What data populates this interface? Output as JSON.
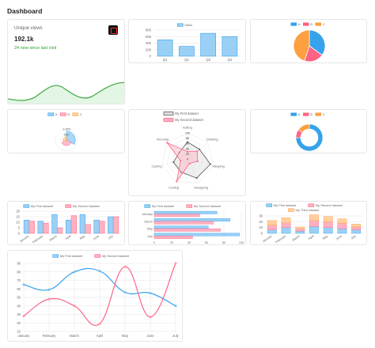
{
  "page": {
    "title": "Dashboard"
  },
  "unique_views": {
    "label": "Unique views",
    "value": "192.1k",
    "subtext": "24 new since last visit",
    "icon": "youtube-icon"
  },
  "colors": {
    "blue": "#36a2eb",
    "blue_fill": "#9ad0f5",
    "red": "#ff6384",
    "red_fill": "#ffb1c1",
    "orange": "#ff9f40",
    "orange_fill": "#ffcf9f",
    "green": "#4caf50",
    "grid": "#e5e5e5",
    "text": "#666666"
  },
  "chart_data": [
    {
      "id": "sales-bar",
      "type": "bar",
      "legend": [
        "Sales"
      ],
      "categories": [
        "Q1",
        "Q2",
        "Q3",
        "Q4"
      ],
      "values": [
        500,
        300,
        700,
        600
      ],
      "ylim": [
        0,
        800
      ],
      "yticks": [
        "800",
        "600",
        "400",
        "200",
        "0"
      ]
    },
    {
      "id": "abc-pie",
      "type": "pie",
      "legend": [
        "A",
        "B",
        "C"
      ],
      "values": [
        35,
        20,
        45
      ]
    },
    {
      "id": "abc-polar",
      "type": "polarArea",
      "legend": [
        "A",
        "B",
        "C"
      ],
      "values": [
        800,
        500,
        300
      ],
      "rlim": [
        0,
        1000
      ],
      "rticks": [
        "1,000",
        "500"
      ]
    },
    {
      "id": "skills-radar",
      "type": "radar",
      "legend": [
        "My First dataset",
        "My Second dataset"
      ],
      "axes": [
        "Eating",
        "Drinking",
        "Sleeping",
        "Designing",
        "Coding",
        "Cycling",
        "Running"
      ],
      "series": [
        {
          "name": "My First dataset",
          "values": [
            65,
            59,
            90,
            81,
            56,
            55,
            40
          ]
        },
        {
          "name": "My Second dataset",
          "values": [
            28,
            48,
            40,
            19,
            96,
            27,
            100
          ]
        }
      ],
      "rlim": [
        0,
        100
      ],
      "rticks": [
        "100",
        "80",
        "60",
        "40",
        "20",
        "0"
      ]
    },
    {
      "id": "abc-doughnut",
      "type": "doughnut",
      "legend": [
        "A",
        "B",
        "C"
      ],
      "values": [
        75,
        10,
        15
      ]
    },
    {
      "id": "grouped-bar",
      "type": "bar",
      "legend": [
        "My First dataset",
        "My Second dataset"
      ],
      "categories": [
        "January",
        "February",
        "March",
        "April",
        "May",
        "June",
        "July"
      ],
      "series": [
        {
          "name": "My First dataset",
          "values": [
            12,
            11,
            17,
            12,
            17,
            12,
            15
          ]
        },
        {
          "name": "My Second dataset",
          "values": [
            11,
            9,
            5,
            16,
            8,
            11,
            15
          ]
        }
      ],
      "ylim": [
        0,
        20
      ],
      "yticks": [
        "20",
        "15",
        "10",
        "5",
        "0"
      ]
    },
    {
      "id": "horizontal-bar",
      "type": "bar",
      "orientation": "horizontal",
      "legend": [
        "My First dataset",
        "My Second dataset"
      ],
      "categories": [
        "January",
        "March",
        "May",
        "July"
      ],
      "series": [
        {
          "name": "My First dataset",
          "values": [
            72,
            87,
            62,
            98
          ]
        },
        {
          "name": "My Second dataset",
          "values": [
            52,
            68,
            76,
            44
          ]
        }
      ],
      "xlim": [
        0,
        100
      ],
      "xticks": [
        "0",
        "20",
        "40",
        "60",
        "80",
        "100"
      ]
    },
    {
      "id": "stacked-bar",
      "type": "bar",
      "stacked": true,
      "legend": [
        "My First dataset",
        "My Second dataset",
        "My Third dataset"
      ],
      "categories": [
        "January",
        "February",
        "March",
        "April",
        "May",
        "June",
        "July"
      ],
      "series": [
        {
          "name": "My First dataset",
          "values": [
            6,
            10,
            4,
            12,
            10,
            8,
            6
          ]
        },
        {
          "name": "My Second dataset",
          "values": [
            8,
            8,
            4,
            10,
            10,
            9,
            5
          ]
        },
        {
          "name": "My Third dataset",
          "values": [
            8,
            9,
            3,
            10,
            9,
            8,
            5
          ]
        }
      ],
      "ylim": [
        0,
        30
      ],
      "yticks": [
        "30",
        "20",
        "10",
        "0"
      ]
    },
    {
      "id": "line-chart",
      "type": "line",
      "legend": [
        "My First dataset",
        "My Second dataset"
      ],
      "categories": [
        "January",
        "February",
        "March",
        "April",
        "May",
        "June",
        "July"
      ],
      "series": [
        {
          "name": "My First dataset",
          "values": [
            65,
            59,
            80,
            81,
            56,
            55,
            40
          ]
        },
        {
          "name": "My Second dataset",
          "values": [
            28,
            48,
            40,
            19,
            86,
            27,
            90
          ]
        }
      ],
      "ylim": [
        10,
        90
      ],
      "yticks": [
        "90",
        "80",
        "70",
        "60",
        "50",
        "40",
        "30",
        "20",
        "10"
      ]
    }
  ]
}
